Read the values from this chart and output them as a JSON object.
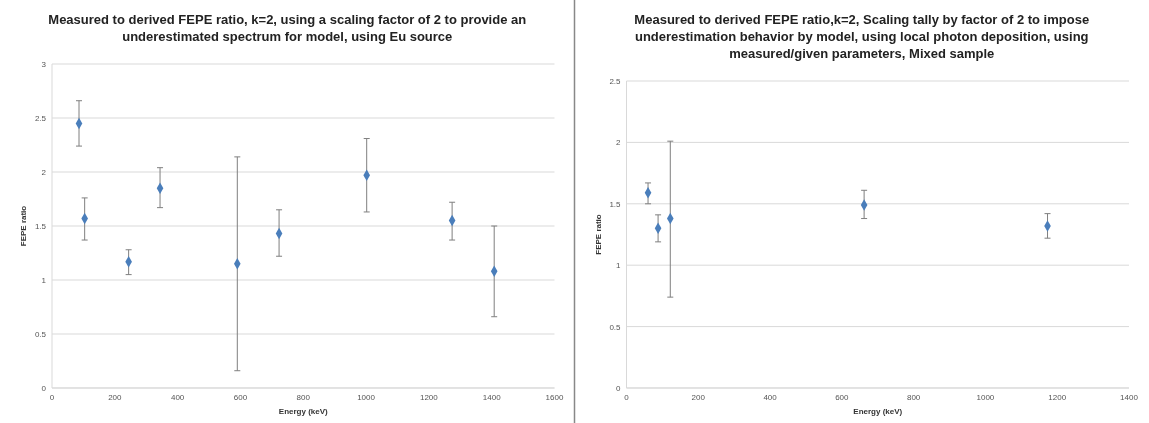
{
  "chart_data": [
    {
      "type": "scatter",
      "title": "Measured to derived FEPE ratio, k=2, using a scaling factor of 2 to provide an underestimated spectrum for model, using Eu source",
      "xlabel": "Energy (keV)",
      "ylabel": "FEPE ratio",
      "x": [
        86,
        104,
        244,
        344,
        590,
        723,
        1002,
        1274,
        1408
      ],
      "values": [
        2.45,
        1.57,
        1.17,
        1.85,
        1.15,
        1.43,
        1.97,
        1.55,
        1.08
      ],
      "errors": [
        [
          2.24,
          2.66
        ],
        [
          1.37,
          1.76
        ],
        [
          1.05,
          1.28
        ],
        [
          1.67,
          2.04
        ],
        [
          0.16,
          2.14
        ],
        [
          1.22,
          1.65
        ],
        [
          1.63,
          2.31
        ],
        [
          1.37,
          1.72
        ],
        [
          0.66,
          1.5
        ]
      ],
      "color": "#4a7ebb",
      "marker": "diamond",
      "xlim": [
        0,
        1600
      ],
      "xticks": [
        0,
        200,
        400,
        600,
        800,
        1000,
        1200,
        1400,
        1600
      ],
      "ylim": [
        0,
        3
      ],
      "yticks": [
        0,
        0.5,
        1,
        1.5,
        2,
        2.5,
        3
      ],
      "grid": "y"
    },
    {
      "type": "scatter",
      "title": "Measured to derived FEPE ratio,k=2, Scaling tally by factor of 2 to impose underestimation behavior by model, using local photon deposition, using measured/given parameters, Mixed sample",
      "xlabel": "Energy (keV)",
      "ylabel": "FEPE ratio",
      "x": [
        60,
        88,
        122,
        662,
        1173
      ],
      "values": [
        1.59,
        1.3,
        1.38,
        1.49,
        1.32
      ],
      "errors": [
        [
          1.5,
          1.67
        ],
        [
          1.19,
          1.41
        ],
        [
          0.74,
          2.01
        ],
        [
          1.38,
          1.61
        ],
        [
          1.22,
          1.42
        ]
      ],
      "color": "#4a7ebb",
      "marker": "diamond",
      "xlim": [
        0,
        1400
      ],
      "xticks": [
        0,
        200,
        400,
        600,
        800,
        1000,
        1200,
        1400
      ],
      "ylim": [
        0,
        2.5
      ],
      "yticks": [
        0,
        0.5,
        1,
        1.5,
        2,
        2.5
      ],
      "grid": "y"
    }
  ]
}
